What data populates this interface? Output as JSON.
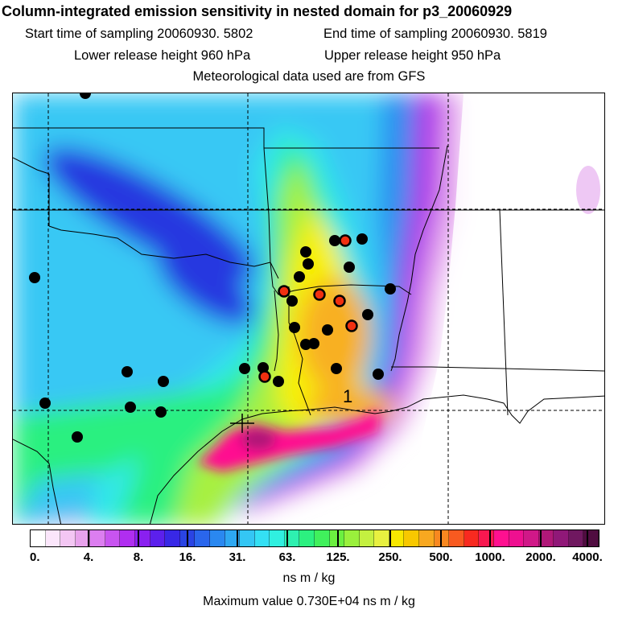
{
  "header": {
    "title": "Column-integrated emission sensitivity in nested domain for p3_20060929",
    "start_label": "Start time of sampling 20060930.  5802",
    "end_label": "End time of sampling 20060930.  5819",
    "lower_label": "Lower release height  960 hPa",
    "upper_label": "Upper release height  950 hPa",
    "met_label": "Meteorological data used are from GFS"
  },
  "map": {
    "release_marker_label": "1",
    "colors": {
      "outside": "#ffffff",
      "lightpurple": "#e6a8ee",
      "purple": "#b030e8",
      "blue": "#2838e0",
      "midblue": "#2a8ef0",
      "lightblue": "#38c8f4",
      "cyan": "#30e8e8",
      "green": "#2cf080",
      "lime": "#a8f040",
      "yellow": "#f8f000",
      "orange": "#f8b020",
      "magenta": "#ff1090",
      "darkmagenta": "#b01878"
    }
  },
  "colorbar": {
    "tick_labels": [
      "0.",
      "4.",
      "8.",
      "16.",
      "31.",
      "63.",
      "125.",
      "250.",
      "500.",
      "1000.",
      "2000.",
      "4000."
    ],
    "colors": [
      "#ffffff",
      "#fbe6fb",
      "#f3c6f3",
      "#e8a2ec",
      "#dc7ef0",
      "#c854f0",
      "#b02ef0",
      "#8a20f0",
      "#5c20ec",
      "#3828e6",
      "#2a44e4",
      "#2a66ec",
      "#2a88f0",
      "#2ea8f2",
      "#34c6f4",
      "#34e0f4",
      "#30f0e0",
      "#2ef0b0",
      "#2cf080",
      "#40f05c",
      "#6cf040",
      "#9af03c",
      "#c4f040",
      "#e8f040",
      "#f8e800",
      "#f8c800",
      "#f8a820",
      "#f88820",
      "#f85a20",
      "#f82a20",
      "#f81850",
      "#ff1090",
      "#ee1090",
      "#d01888",
      "#b01878",
      "#901878",
      "#701860",
      "#500c40"
    ],
    "units": "ns m / kg"
  },
  "footer": {
    "maximum": "Maximum value  0.730E+04 ns m / kg"
  }
}
